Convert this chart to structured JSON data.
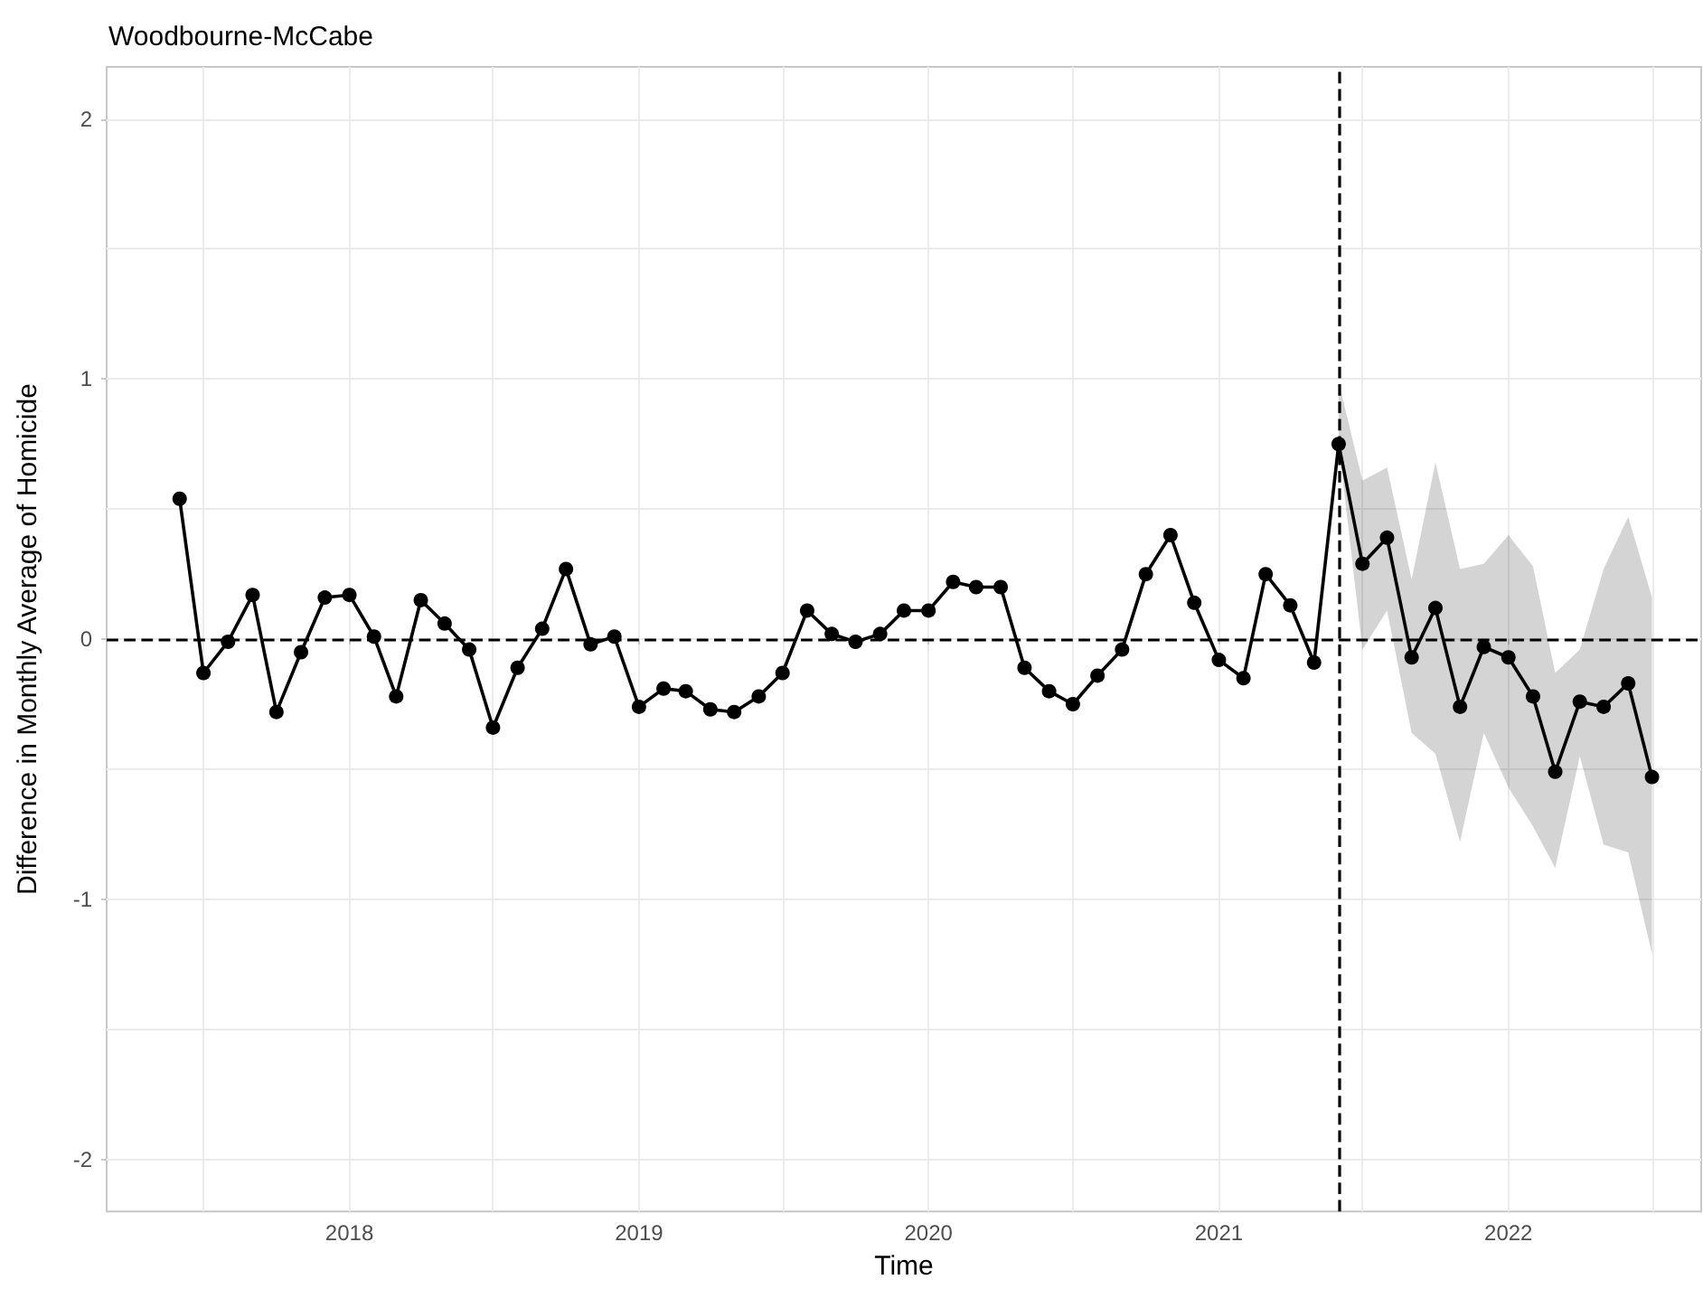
{
  "chart_data": {
    "type": "line",
    "title": "Woodbourne-McCabe",
    "xlabel": "Time",
    "ylabel": "Difference in Monthly Average of Homicide",
    "x": [
      "2017-06",
      "2017-07",
      "2017-08",
      "2017-09",
      "2017-10",
      "2017-11",
      "2017-12",
      "2018-01",
      "2018-02",
      "2018-03",
      "2018-04",
      "2018-05",
      "2018-06",
      "2018-07",
      "2018-08",
      "2018-09",
      "2018-10",
      "2018-11",
      "2018-12",
      "2019-01",
      "2019-02",
      "2019-03",
      "2019-04",
      "2019-05",
      "2019-06",
      "2019-07",
      "2019-08",
      "2019-09",
      "2019-10",
      "2019-11",
      "2019-12",
      "2020-01",
      "2020-02",
      "2020-03",
      "2020-04",
      "2020-05",
      "2020-06",
      "2020-07",
      "2020-08",
      "2020-09",
      "2020-10",
      "2020-11",
      "2020-12",
      "2021-01",
      "2021-02",
      "2021-03",
      "2021-04",
      "2021-05",
      "2021-06",
      "2021-07",
      "2021-08",
      "2021-09",
      "2021-10",
      "2021-11",
      "2021-12",
      "2022-01",
      "2022-02",
      "2022-03",
      "2022-04",
      "2022-05",
      "2022-06",
      "2022-07"
    ],
    "series": [
      {
        "color": "#000000",
        "values": [
          0.54,
          -0.13,
          -0.01,
          0.17,
          -0.28,
          -0.05,
          0.16,
          0.17,
          0.01,
          -0.22,
          0.15,
          0.06,
          -0.04,
          -0.34,
          -0.11,
          0.04,
          0.27,
          -0.02,
          0.01,
          -0.26,
          -0.19,
          -0.2,
          -0.27,
          -0.28,
          -0.22,
          -0.13,
          0.11,
          0.02,
          -0.01,
          0.02,
          0.11,
          0.11,
          0.22,
          0.2,
          0.2,
          -0.11,
          -0.2,
          -0.25,
          -0.14,
          -0.04,
          0.25,
          0.4,
          0.14,
          -0.08,
          -0.15,
          0.25,
          0.13,
          -0.09,
          0.75,
          0.29,
          0.39,
          -0.07,
          0.12,
          -0.26,
          -0.03,
          -0.07,
          -0.22,
          -0.51,
          -0.24,
          -0.26,
          -0.17,
          -0.53
        ],
        "lower": [
          null,
          null,
          null,
          null,
          null,
          null,
          null,
          null,
          null,
          null,
          null,
          null,
          null,
          null,
          null,
          null,
          null,
          null,
          null,
          null,
          null,
          null,
          null,
          null,
          null,
          null,
          null,
          null,
          null,
          null,
          null,
          null,
          null,
          null,
          null,
          null,
          null,
          null,
          null,
          null,
          null,
          null,
          null,
          null,
          null,
          null,
          null,
          null,
          0.75,
          -0.04,
          0.11,
          -0.36,
          -0.44,
          -0.78,
          -0.36,
          -0.57,
          -0.72,
          -0.88,
          -0.45,
          -0.79,
          -0.82,
          -1.21
        ],
        "upper": [
          null,
          null,
          null,
          null,
          null,
          null,
          null,
          null,
          null,
          null,
          null,
          null,
          null,
          null,
          null,
          null,
          null,
          null,
          null,
          null,
          null,
          null,
          null,
          null,
          null,
          null,
          null,
          null,
          null,
          null,
          null,
          null,
          null,
          null,
          null,
          null,
          null,
          null,
          null,
          null,
          null,
          null,
          null,
          null,
          null,
          null,
          null,
          null,
          0.99,
          0.61,
          0.66,
          0.23,
          0.68,
          0.27,
          0.29,
          0.4,
          0.28,
          -0.13,
          -0.04,
          0.27,
          0.47,
          0.16
        ]
      }
    ],
    "xlim": [
      "2017-03",
      "2022-09"
    ],
    "xticks": [
      {
        "value": "2017-07",
        "label": null
      },
      {
        "value": "2018",
        "label": "2018"
      },
      {
        "value": "2018-07",
        "label": null
      },
      {
        "value": "2019",
        "label": "2019"
      },
      {
        "value": "2019-07",
        "label": null
      },
      {
        "value": "2020",
        "label": "2020"
      },
      {
        "value": "2020-07",
        "label": null
      },
      {
        "value": "2021",
        "label": "2021"
      },
      {
        "value": "2021-07",
        "label": null
      },
      {
        "value": "2022",
        "label": "2022"
      },
      {
        "value": "2022-07",
        "label": null
      }
    ],
    "ylim": [
      -2.2,
      2.2
    ],
    "yticks": [
      -2,
      {
        "value": -1.5,
        "label": null
      },
      -1,
      {
        "value": -0.5,
        "label": null
      },
      0,
      {
        "value": 0.5,
        "label": null
      },
      1,
      {
        "value": 1.5,
        "label": null
      },
      2
    ],
    "ref_lines": [
      {
        "axis": "y",
        "value": 0,
        "color": "#000000",
        "line_style": "dashed"
      },
      {
        "axis": "x",
        "value": "2021-06",
        "color": "#000000",
        "line_style": "dashed"
      }
    ],
    "grid": true,
    "marker": "circle",
    "line_style": "solid"
  }
}
